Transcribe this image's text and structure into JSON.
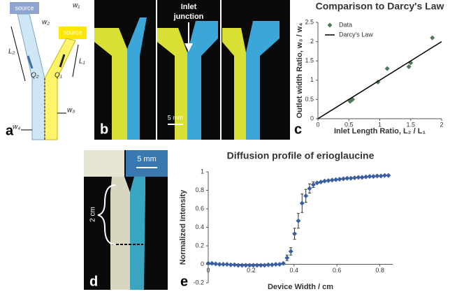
{
  "chart_data": [
    {
      "type": "scatter",
      "title": "Comparison to Darcy's Law",
      "x_label": "Inlet Length Ratio, L₂ / L₁",
      "y_label": "Outlet width Ratio, w₃ / w₄",
      "xlim": [
        0,
        2
      ],
      "xticks": [
        0,
        0.5,
        1,
        1.5,
        2
      ],
      "ylim": [
        0,
        2.5
      ],
      "yticks": [
        0,
        0.5,
        1,
        1.5,
        2,
        2.5
      ],
      "legend": "upper left",
      "series": [
        {
          "name": "Data",
          "color": "#4e7a5a",
          "x": [
            0.52,
            0.56,
            0.97,
            1.12,
            1.47,
            1.5,
            1.85
          ],
          "values": [
            0.45,
            0.5,
            0.95,
            1.3,
            1.35,
            1.45,
            2.1
          ]
        },
        {
          "name": "Darcy's Law",
          "color": "#000000",
          "style": "line",
          "x": [
            0,
            2
          ],
          "values": [
            0,
            2
          ]
        }
      ]
    },
    {
      "type": "scatter",
      "title": "Diffusion profile of erioglaucine",
      "x_label": "Device Width / cm",
      "y_label": "Normalized Intensity",
      "xlim": [
        0,
        0.86
      ],
      "xticks": [
        0,
        0.2,
        0.4,
        0.6,
        0.8
      ],
      "ylim": [
        -0.2,
        1
      ],
      "yticks": [
        -0.2,
        0,
        0.2,
        0.4,
        0.6,
        0.8,
        1
      ],
      "series": [
        {
          "color": "#3a5fa0",
          "x": [
            0,
            0.0175,
            0.035,
            0.0525,
            0.07,
            0.0875,
            0.105,
            0.1225,
            0.14,
            0.1575,
            0.175,
            0.1925,
            0.21,
            0.2275,
            0.245,
            0.2625,
            0.28,
            0.2975,
            0.315,
            0.3325,
            0.35,
            0.3675,
            0.385,
            0.4025,
            0.42,
            0.4375,
            0.455,
            0.4725,
            0.49,
            0.5075,
            0.525,
            0.5425,
            0.56,
            0.5775,
            0.595,
            0.6125,
            0.63,
            0.6475,
            0.665,
            0.6825,
            0.7,
            0.7175,
            0.735,
            0.7525,
            0.77,
            0.7875,
            0.805,
            0.8225,
            0.84
          ],
          "values": [
            0.01,
            0.01,
            0.005,
            0,
            0,
            0,
            -0.005,
            -0.005,
            -0.01,
            -0.01,
            -0.01,
            -0.01,
            -0.01,
            -0.01,
            -0.01,
            -0.01,
            -0.005,
            -0.005,
            0,
            0,
            0.01,
            0.07,
            0.14,
            0.33,
            0.47,
            0.66,
            0.74,
            0.82,
            0.86,
            0.88,
            0.89,
            0.9,
            0.905,
            0.91,
            0.915,
            0.92,
            0.925,
            0.93,
            0.93,
            0.935,
            0.94,
            0.94,
            0.945,
            0.95,
            0.95,
            0.955,
            0.955,
            0.96,
            0.96
          ],
          "errors": [
            null,
            null,
            null,
            null,
            null,
            null,
            null,
            null,
            null,
            null,
            null,
            null,
            null,
            null,
            null,
            null,
            null,
            null,
            null,
            null,
            null,
            0.03,
            0.04,
            0.06,
            0.08,
            0.1,
            0.07,
            0.05,
            0.03,
            null,
            null,
            null,
            null,
            null,
            null,
            null,
            null,
            null,
            null,
            null,
            null,
            null,
            null,
            null,
            null,
            null,
            null,
            null,
            null
          ]
        }
      ]
    }
  ],
  "panels": [
    "a",
    "b",
    "c",
    "d",
    "e"
  ],
  "diagram": {
    "source_left": "source",
    "source_right": "source",
    "w1": "w₁",
    "w2": "w₂",
    "L2": "L₂",
    "L1": "L₁",
    "Q2": "Q₂",
    "Q1": "Q₁",
    "w4": "w₄",
    "w3": "w₃"
  },
  "photos": {
    "inlet": [
      "Inlet",
      "junction"
    ],
    "scale_b": "5 mm",
    "scale_d": "5 mm",
    "length_d": "2 cm"
  }
}
